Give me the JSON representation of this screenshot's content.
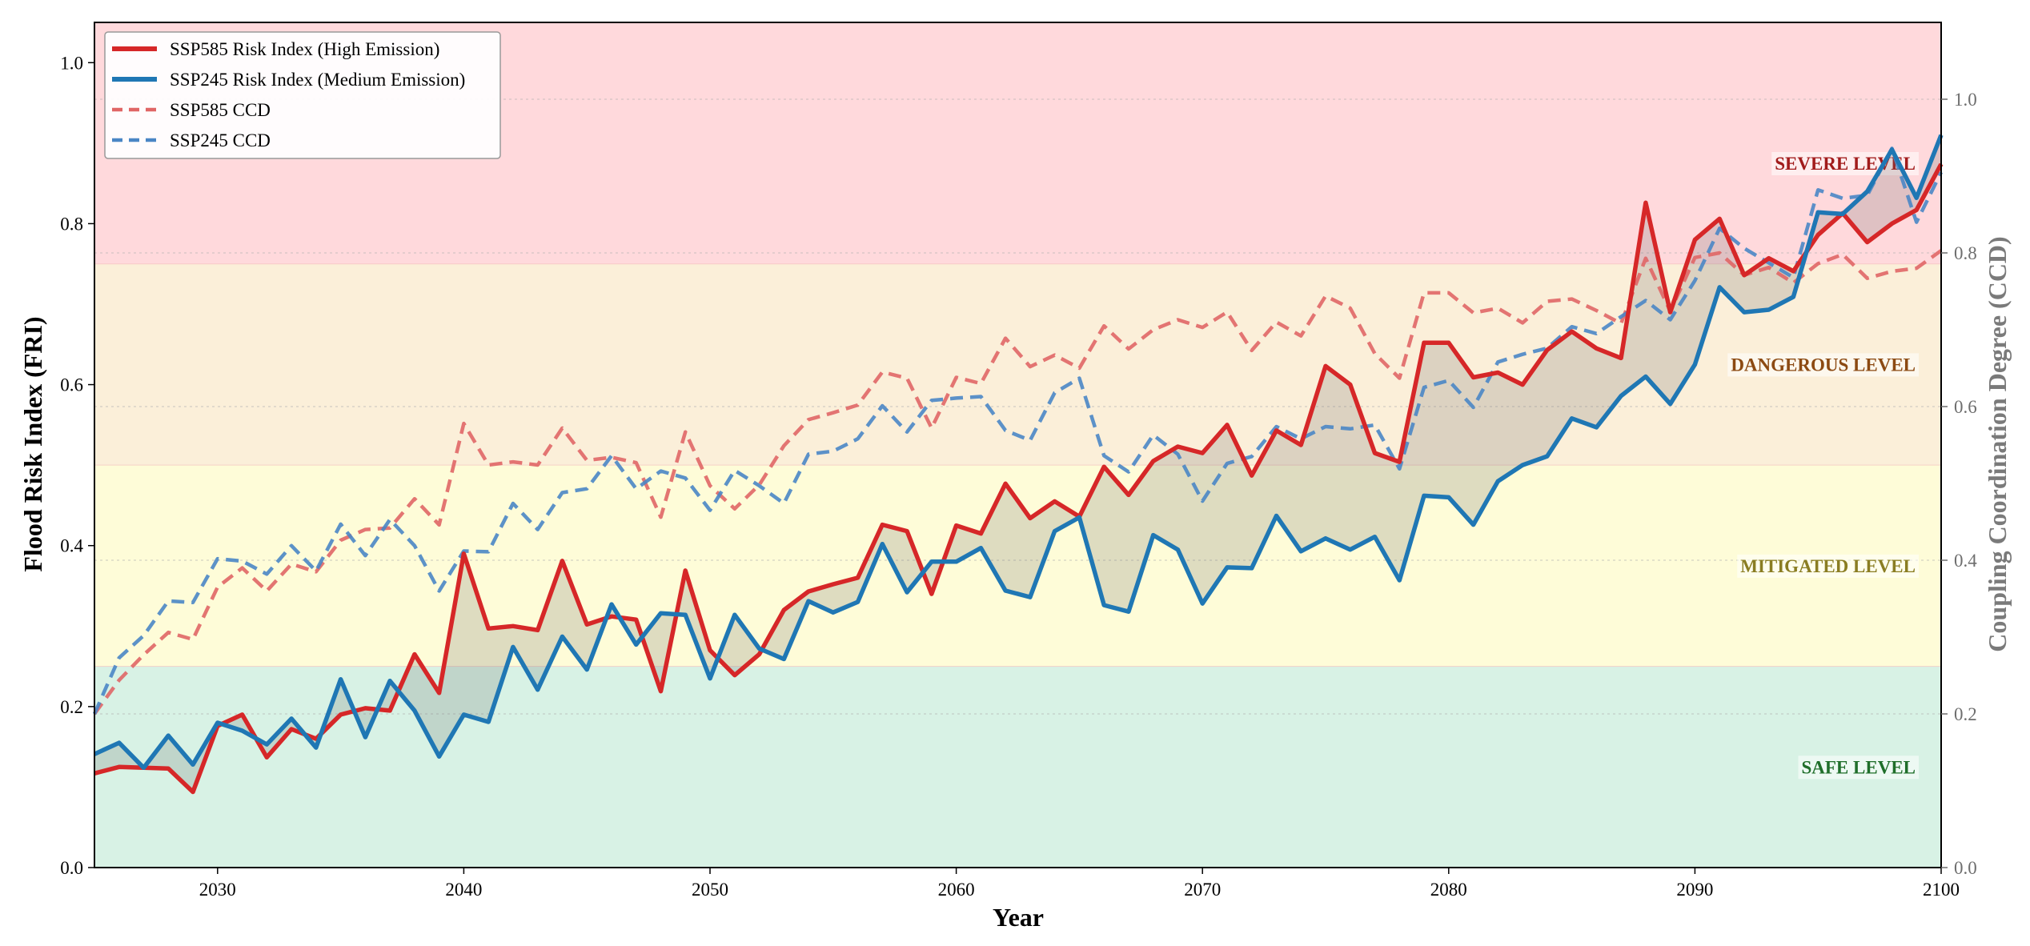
{
  "chart_data": {
    "type": "line",
    "xlabel": "Year",
    "ylabel": "Flood Risk Index (FRI)",
    "y2label": "Coupling Coordination Degree (CCD)",
    "xlim": [
      2025,
      2100
    ],
    "ylim": [
      0,
      1.05
    ],
    "y2lim": [
      0,
      1.1
    ],
    "xticks": [
      2030,
      2040,
      2050,
      2060,
      2070,
      2080,
      2090,
      2100
    ],
    "xtick_labels": [
      "2030",
      "2040",
      "2050",
      "2060",
      "2070",
      "2080",
      "2090",
      "2100"
    ],
    "yticks": [
      0.0,
      0.2,
      0.4,
      0.6,
      0.8,
      1.0
    ],
    "ytick_labels": [
      "0.0",
      "0.2",
      "0.4",
      "0.6",
      "0.8",
      "1.0"
    ],
    "y2ticks": [
      0.0,
      0.2,
      0.4,
      0.6,
      0.8,
      1.0
    ],
    "y2tick_labels": [
      "0.0",
      "0.2",
      "0.4",
      "0.6",
      "0.8",
      "1.0"
    ],
    "grid": true,
    "legend_position": "top-left",
    "zones": [
      {
        "label": "SAFE LEVEL",
        "from": 0.0,
        "to": 0.25,
        "fill": "#d8f2e5",
        "text_color": "#1f6e2a"
      },
      {
        "label": "MITIGATED LEVEL",
        "from": 0.25,
        "to": 0.5,
        "fill": "#fefcd8",
        "text_color": "#8a7d22"
      },
      {
        "label": "DANGEROUS LEVEL",
        "from": 0.5,
        "to": 0.75,
        "fill": "#fbefd9",
        "text_color": "#8c4a12"
      },
      {
        "label": "SEVERE LEVEL",
        "from": 0.75,
        "to": 1.05,
        "fill": "#ffd9dc",
        "text_color": "#a11b1b"
      }
    ],
    "x": [
      2025,
      2026,
      2027,
      2028,
      2029,
      2030,
      2031,
      2032,
      2033,
      2034,
      2035,
      2036,
      2037,
      2038,
      2039,
      2040,
      2041,
      2042,
      2043,
      2044,
      2045,
      2046,
      2047,
      2048,
      2049,
      2050,
      2051,
      2052,
      2053,
      2054,
      2055,
      2056,
      2057,
      2058,
      2059,
      2060,
      2061,
      2062,
      2063,
      2064,
      2065,
      2066,
      2067,
      2068,
      2069,
      2070,
      2071,
      2072,
      2073,
      2074,
      2075,
      2076,
      2077,
      2078,
      2079,
      2080,
      2081,
      2082,
      2083,
      2084,
      2085,
      2086,
      2087,
      2088,
      2089,
      2090,
      2091,
      2092,
      2093,
      2094,
      2095,
      2096,
      2097,
      2098,
      2099,
      2100
    ],
    "series": [
      {
        "name": "SSP585 Risk Index (High Emission)",
        "axis": "left",
        "style": "solid",
        "color": "#d62728",
        "values": [
          0.117,
          0.125,
          0.124,
          0.123,
          0.094,
          0.176,
          0.19,
          0.137,
          0.172,
          0.16,
          0.19,
          0.198,
          0.195,
          0.265,
          0.217,
          0.39,
          0.297,
          0.3,
          0.295,
          0.381,
          0.302,
          0.312,
          0.308,
          0.219,
          0.369,
          0.27,
          0.239,
          0.265,
          0.32,
          0.343,
          0.352,
          0.36,
          0.426,
          0.418,
          0.34,
          0.425,
          0.415,
          0.477,
          0.434,
          0.455,
          0.436,
          0.498,
          0.463,
          0.505,
          0.523,
          0.515,
          0.55,
          0.487,
          0.543,
          0.525,
          0.623,
          0.6,
          0.515,
          0.504,
          0.652,
          0.652,
          0.609,
          0.615,
          0.6,
          0.643,
          0.666,
          0.645,
          0.633,
          0.826,
          0.69,
          0.78,
          0.806,
          0.736,
          0.757,
          0.741,
          0.786,
          0.813,
          0.777,
          0.8,
          0.817,
          0.874
        ]
      },
      {
        "name": "SSP245 Risk Index (Medium Emission)",
        "axis": "left",
        "style": "solid",
        "color": "#1f77b4",
        "values": [
          0.141,
          0.155,
          0.124,
          0.164,
          0.128,
          0.18,
          0.17,
          0.153,
          0.185,
          0.149,
          0.234,
          0.162,
          0.232,
          0.195,
          0.138,
          0.19,
          0.181,
          0.274,
          0.221,
          0.287,
          0.246,
          0.327,
          0.277,
          0.316,
          0.314,
          0.235,
          0.314,
          0.272,
          0.259,
          0.331,
          0.317,
          0.33,
          0.402,
          0.342,
          0.38,
          0.38,
          0.397,
          0.344,
          0.336,
          0.418,
          0.435,
          0.326,
          0.318,
          0.413,
          0.395,
          0.328,
          0.373,
          0.372,
          0.437,
          0.393,
          0.409,
          0.395,
          0.411,
          0.357,
          0.462,
          0.46,
          0.426,
          0.48,
          0.5,
          0.511,
          0.558,
          0.547,
          0.586,
          0.61,
          0.576,
          0.625,
          0.721,
          0.69,
          0.693,
          0.709,
          0.814,
          0.812,
          0.84,
          0.892,
          0.832,
          0.91
        ]
      },
      {
        "name": "SSP585 CCD",
        "axis": "right",
        "style": "dashed",
        "color": "#e06666",
        "values": [
          0.2,
          0.244,
          0.277,
          0.306,
          0.297,
          0.365,
          0.39,
          0.36,
          0.395,
          0.385,
          0.426,
          0.44,
          0.442,
          0.48,
          0.446,
          0.578,
          0.524,
          0.528,
          0.524,
          0.572,
          0.53,
          0.534,
          0.527,
          0.456,
          0.567,
          0.497,
          0.467,
          0.498,
          0.549,
          0.583,
          0.592,
          0.602,
          0.645,
          0.637,
          0.572,
          0.638,
          0.63,
          0.689,
          0.652,
          0.667,
          0.65,
          0.705,
          0.675,
          0.7,
          0.713,
          0.703,
          0.723,
          0.673,
          0.71,
          0.692,
          0.744,
          0.728,
          0.669,
          0.637,
          0.748,
          0.748,
          0.722,
          0.728,
          0.709,
          0.737,
          0.74,
          0.725,
          0.708,
          0.793,
          0.724,
          0.794,
          0.8,
          0.771,
          0.781,
          0.761,
          0.786,
          0.798,
          0.767,
          0.776,
          0.78,
          0.803
        ]
      },
      {
        "name": "SSP245 CCD",
        "axis": "right",
        "style": "dashed",
        "color": "#4a86c5",
        "values": [
          0.2,
          0.273,
          0.302,
          0.347,
          0.345,
          0.402,
          0.399,
          0.382,
          0.419,
          0.386,
          0.447,
          0.406,
          0.453,
          0.419,
          0.36,
          0.412,
          0.411,
          0.474,
          0.44,
          0.488,
          0.493,
          0.536,
          0.493,
          0.516,
          0.507,
          0.465,
          0.517,
          0.497,
          0.474,
          0.538,
          0.542,
          0.558,
          0.601,
          0.567,
          0.608,
          0.611,
          0.613,
          0.569,
          0.556,
          0.618,
          0.637,
          0.536,
          0.515,
          0.563,
          0.538,
          0.477,
          0.526,
          0.535,
          0.574,
          0.558,
          0.574,
          0.571,
          0.576,
          0.519,
          0.625,
          0.634,
          0.599,
          0.658,
          0.668,
          0.676,
          0.704,
          0.695,
          0.717,
          0.738,
          0.713,
          0.764,
          0.832,
          0.806,
          0.787,
          0.768,
          0.882,
          0.871,
          0.875,
          0.936,
          0.84,
          0.905
        ]
      }
    ]
  }
}
